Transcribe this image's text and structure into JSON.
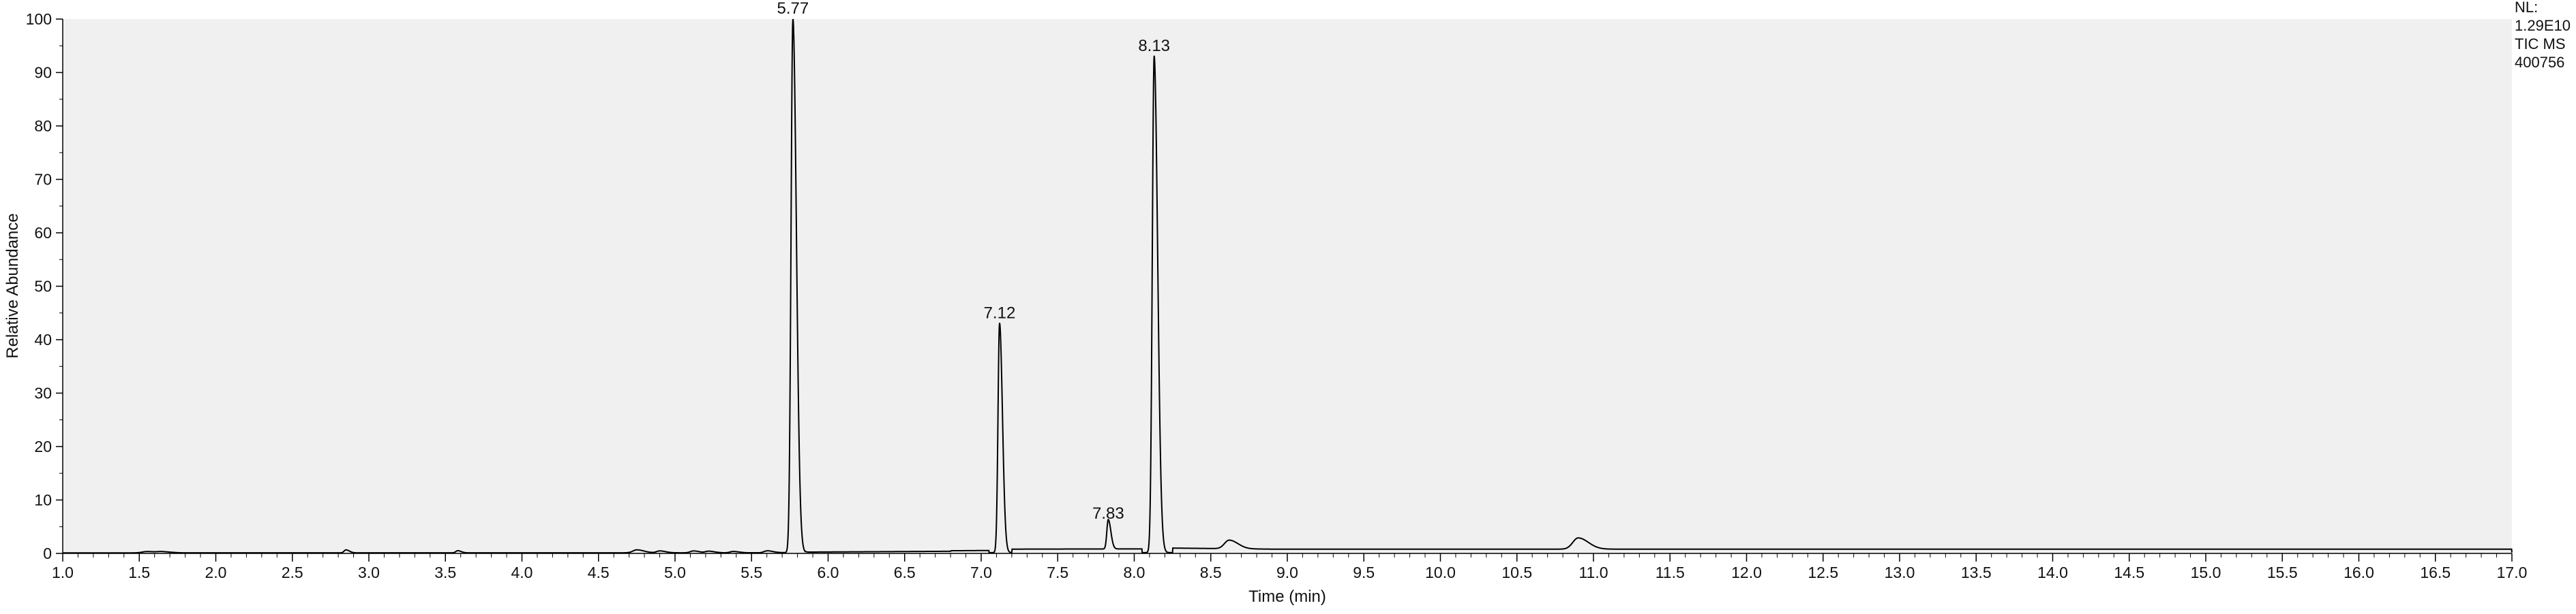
{
  "chart_data": {
    "type": "line",
    "title": "",
    "xlabel": "Time (min)",
    "ylabel": "Relative Abundance",
    "xlim": [
      1.0,
      17.0
    ],
    "ylim": [
      0,
      100
    ],
    "grid": false,
    "legend": "none",
    "colors": {
      "plot_background": "#f0f0f0",
      "trace": "#000000",
      "axis": "#000000",
      "text": "#111111"
    },
    "x_ticks": [
      "1.0",
      "1.5",
      "2.0",
      "2.5",
      "3.0",
      "3.5",
      "4.0",
      "4.5",
      "5.0",
      "5.5",
      "6.0",
      "6.5",
      "7.0",
      "7.5",
      "8.0",
      "8.5",
      "9.0",
      "9.5",
      "10.0",
      "10.5",
      "11.0",
      "11.5",
      "12.0",
      "12.5",
      "13.0",
      "13.5",
      "14.0",
      "14.5",
      "15.0",
      "15.5",
      "16.0",
      "16.5",
      "17.0"
    ],
    "y_ticks": [
      "0",
      "10",
      "20",
      "30",
      "40",
      "50",
      "60",
      "70",
      "80",
      "90",
      "100"
    ],
    "side_annotations": [
      "NL:",
      "1.29E10",
      "TIC  MS",
      "400756"
    ],
    "peaks": [
      {
        "rt": 5.77,
        "label": "5.77",
        "height": 100,
        "width": 0.012
      },
      {
        "rt": 7.12,
        "label": "7.12",
        "height": 43,
        "width": 0.01
      },
      {
        "rt": 7.83,
        "label": "7.83",
        "height": 5.5,
        "width": 0.009
      },
      {
        "rt": 8.13,
        "label": "8.13",
        "height": 93,
        "width": 0.012
      }
    ],
    "minor_peaks": [
      {
        "rt": 1.55,
        "height": 0.25,
        "width": 0.03
      },
      {
        "rt": 1.65,
        "height": 0.2,
        "width": 0.03
      },
      {
        "rt": 2.85,
        "height": 0.55,
        "width": 0.012
      },
      {
        "rt": 3.58,
        "height": 0.4,
        "width": 0.012
      },
      {
        "rt": 4.75,
        "height": 0.55,
        "width": 0.025
      },
      {
        "rt": 4.9,
        "height": 0.35,
        "width": 0.02
      },
      {
        "rt": 5.12,
        "height": 0.35,
        "width": 0.02
      },
      {
        "rt": 5.22,
        "height": 0.3,
        "width": 0.02
      },
      {
        "rt": 5.38,
        "height": 0.25,
        "width": 0.02
      },
      {
        "rt": 5.6,
        "height": 0.35,
        "width": 0.02
      },
      {
        "rt": 8.62,
        "height": 1.6,
        "width": 0.03
      },
      {
        "rt": 10.9,
        "height": 2.1,
        "width": 0.035
      }
    ],
    "baseline_segments": [
      {
        "x": [
          1.0,
          5.6
        ],
        "y": [
          0.1,
          0.12
        ]
      },
      {
        "x": [
          5.85,
          6.8
        ],
        "y": [
          0.25,
          0.4
        ]
      },
      {
        "x": [
          6.8,
          7.05
        ],
        "y": [
          0.5,
          0.55
        ]
      },
      {
        "x": [
          7.2,
          8.05
        ],
        "y": [
          0.8,
          0.85
        ]
      },
      {
        "x": [
          8.25,
          8.9
        ],
        "y": [
          1.0,
          0.8
        ]
      },
      {
        "x": [
          8.9,
          17.0
        ],
        "y": [
          0.8,
          0.8
        ]
      }
    ]
  }
}
